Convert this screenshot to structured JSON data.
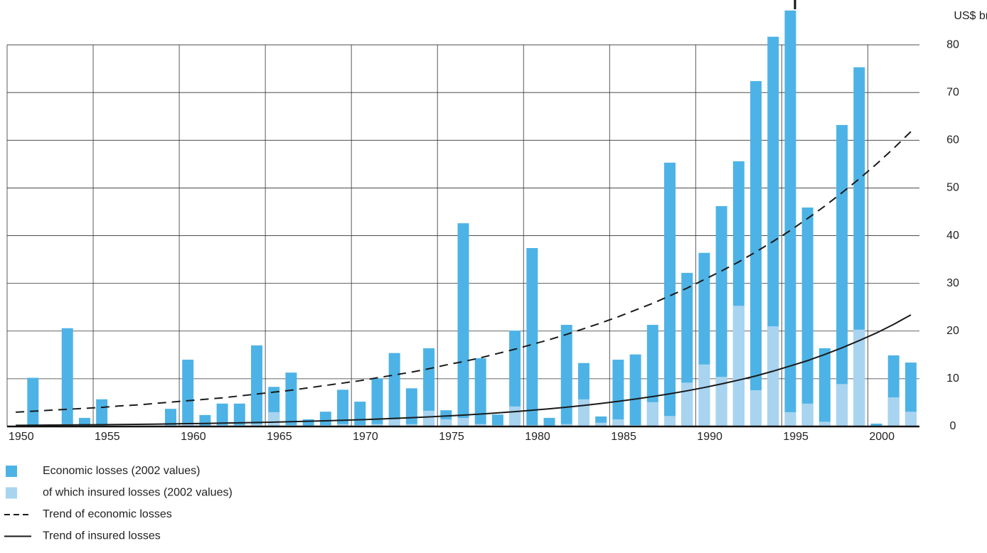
{
  "chart_data": {
    "type": "bar",
    "y_label": "US$ bn",
    "x": [
      1950,
      1951,
      1952,
      1953,
      1954,
      1955,
      1956,
      1957,
      1958,
      1959,
      1960,
      1961,
      1962,
      1963,
      1964,
      1965,
      1966,
      1967,
      1968,
      1969,
      1970,
      1971,
      1972,
      1973,
      1974,
      1975,
      1976,
      1977,
      1978,
      1979,
      1980,
      1981,
      1982,
      1983,
      1984,
      1985,
      1986,
      1987,
      1988,
      1989,
      1990,
      1991,
      1992,
      1993,
      1994,
      1995,
      1996,
      1997,
      1998,
      1999,
      2000,
      2001,
      2002
    ],
    "xlim": [
      1950,
      2003
    ],
    "xticks": [
      1950,
      1955,
      1960,
      1965,
      1970,
      1975,
      1980,
      1985,
      1990,
      1995,
      2000
    ],
    "ylim": [
      0,
      89.4
    ],
    "yticks": [
      0,
      10,
      20,
      30,
      40,
      50,
      60,
      70,
      80
    ],
    "grid": true,
    "series": [
      {
        "name": "Economic losses (2002 values)",
        "type": "bar",
        "color": "#4db3e6",
        "values": [
          null,
          10.2,
          null,
          20.6,
          1.8,
          5.7,
          null,
          null,
          null,
          3.7,
          14.0,
          2.4,
          4.8,
          4.8,
          17.0,
          8.3,
          11.3,
          1.5,
          3.1,
          7.7,
          5.2,
          10.1,
          15.4,
          8.0,
          16.4,
          3.4,
          42.6,
          14.3,
          2.5,
          20.1,
          37.4,
          1.8,
          21.3,
          13.3,
          2.1,
          14.0,
          15.1,
          21.3,
          55.3,
          32.2,
          36.4,
          46.2,
          55.6,
          72.4,
          81.7,
          87.2,
          45.9,
          16.4,
          63.2,
          75.3,
          0.6,
          14.9,
          13.4
        ]
      },
      {
        "name": "of which insured losses (2002 values)",
        "type": "bar",
        "color": "#a8d4f0",
        "values": [
          null,
          0.3,
          null,
          0.5,
          0.2,
          0.3,
          null,
          null,
          null,
          0.3,
          0.5,
          0.2,
          0.3,
          0.3,
          0.5,
          3.0,
          0.3,
          0.2,
          0.3,
          0.5,
          0.3,
          0.5,
          1.5,
          0.5,
          3.3,
          1.5,
          1.8,
          0.5,
          0.3,
          4.2,
          0.3,
          0.2,
          0.5,
          5.7,
          0.8,
          1.5,
          0.3,
          5.1,
          2.2,
          9.2,
          13.0,
          10.4,
          25.3,
          7.6,
          21.0,
          3.0,
          4.8,
          1.0,
          8.9,
          20.3,
          0.2,
          6.1,
          3.1
        ]
      },
      {
        "name": "Trend of economic losses",
        "type": "line",
        "style": "dashed",
        "color": "#1a1a1a",
        "values": [
          3.0,
          3.2,
          3.4,
          3.6,
          3.8,
          4.0,
          4.3,
          4.5,
          4.8,
          5.1,
          5.4,
          5.7,
          6.0,
          6.4,
          6.8,
          7.2,
          7.6,
          8.1,
          8.6,
          9.1,
          9.6,
          10.2,
          10.8,
          11.4,
          12.1,
          12.9,
          13.6,
          14.4,
          15.3,
          16.2,
          17.2,
          18.2,
          19.3,
          20.5,
          21.7,
          23.0,
          24.4,
          25.8,
          27.4,
          29.0,
          30.8,
          32.6,
          34.5,
          36.6,
          38.8,
          41.1,
          43.6,
          46.2,
          49.0,
          51.9,
          55.0,
          58.3,
          61.8
        ]
      },
      {
        "name": "Trend of insured losses",
        "type": "line",
        "style": "solid",
        "color": "#1a1a1a",
        "values": [
          0.25,
          0.27,
          0.29,
          0.32,
          0.35,
          0.38,
          0.41,
          0.45,
          0.49,
          0.54,
          0.59,
          0.64,
          0.7,
          0.77,
          0.84,
          0.91,
          1.0,
          1.09,
          1.19,
          1.3,
          1.41,
          1.54,
          1.69,
          1.84,
          2.01,
          2.19,
          2.39,
          2.61,
          2.85,
          3.11,
          3.4,
          3.71,
          4.05,
          4.42,
          4.83,
          5.27,
          5.75,
          6.28,
          6.85,
          7.48,
          8.17,
          8.92,
          9.73,
          10.6,
          11.6,
          12.7,
          13.8,
          15.1,
          16.5,
          18.0,
          19.6,
          21.4,
          23.4
        ]
      }
    ]
  }
}
